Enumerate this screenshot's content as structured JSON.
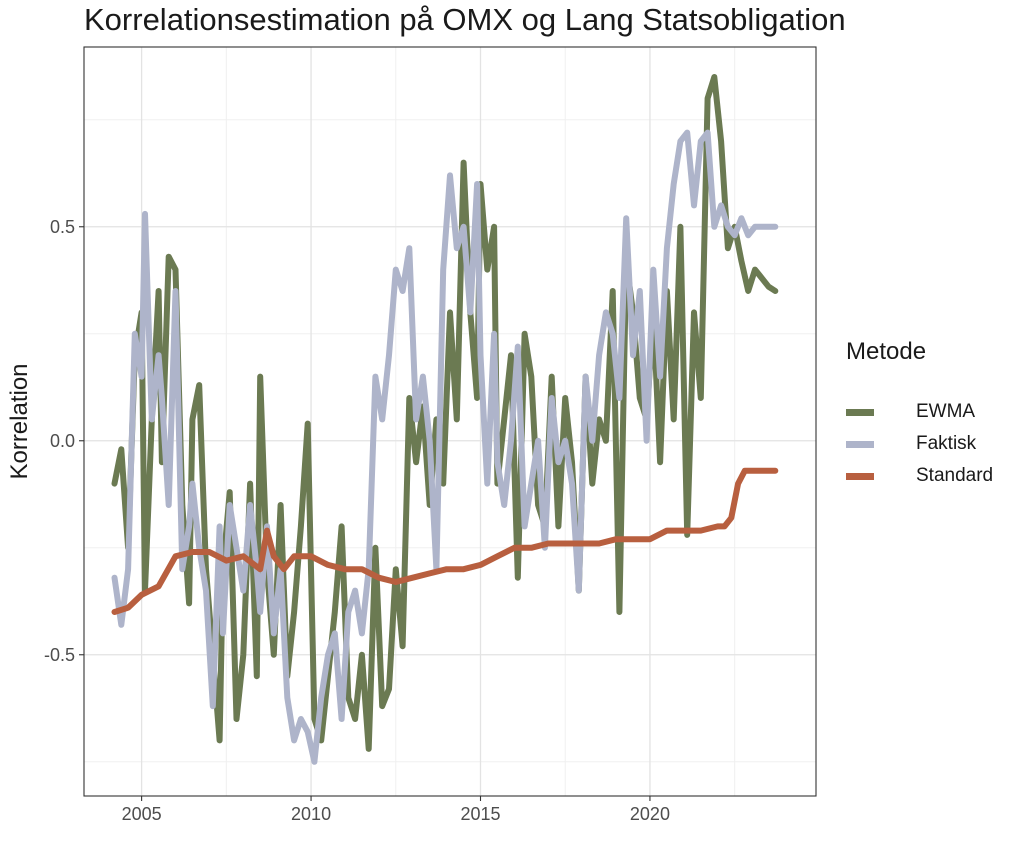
{
  "chart_data": {
    "type": "line",
    "title": "Korrelationsestimation på OMX og Lang Statsobligation",
    "xlabel": "",
    "ylabel": "Korrelation",
    "xlim": [
      2003.3,
      2024.9
    ],
    "ylim": [
      -0.83,
      0.92
    ],
    "x_ticks": [
      2005,
      2010,
      2015,
      2020
    ],
    "x_tick_labels": [
      "2005",
      "2010",
      "2015",
      "2020"
    ],
    "y_ticks": [
      -0.5,
      0.0,
      0.5
    ],
    "y_tick_labels": [
      "-0.5",
      "0.0",
      "0.5"
    ],
    "grid": true,
    "legend": {
      "title": "Metode",
      "position": "right"
    },
    "series": [
      {
        "name": "EWMA",
        "color": "#6b7a52",
        "x": [
          2004.2,
          2004.4,
          2004.6,
          2004.8,
          2005.0,
          2005.1,
          2005.3,
          2005.5,
          2005.6,
          2005.8,
          2006.0,
          2006.2,
          2006.4,
          2006.5,
          2006.7,
          2006.9,
          2007.1,
          2007.3,
          2007.4,
          2007.6,
          2007.8,
          2008.0,
          2008.2,
          2008.4,
          2008.5,
          2008.7,
          2008.9,
          2009.1,
          2009.3,
          2009.5,
          2009.7,
          2009.9,
          2010.1,
          2010.3,
          2010.5,
          2010.7,
          2010.9,
          2011.1,
          2011.3,
          2011.5,
          2011.7,
          2011.9,
          2012.1,
          2012.3,
          2012.5,
          2012.7,
          2012.9,
          2013.1,
          2013.3,
          2013.5,
          2013.7,
          2013.9,
          2014.1,
          2014.3,
          2014.5,
          2014.7,
          2014.9,
          2015.0,
          2015.2,
          2015.4,
          2015.5,
          2015.7,
          2015.9,
          2016.1,
          2016.3,
          2016.5,
          2016.7,
          2016.9,
          2017.1,
          2017.3,
          2017.5,
          2017.7,
          2017.9,
          2018.1,
          2018.3,
          2018.5,
          2018.7,
          2018.9,
          2019.1,
          2019.3,
          2019.5,
          2019.7,
          2019.9,
          2020.1,
          2020.3,
          2020.5,
          2020.7,
          2020.9,
          2021.1,
          2021.3,
          2021.5,
          2021.7,
          2021.9,
          2022.1,
          2022.3,
          2022.5,
          2022.7,
          2022.9,
          2023.1,
          2023.3,
          2023.5,
          2023.7
        ],
        "values": [
          -0.1,
          -0.02,
          -0.25,
          0.2,
          0.3,
          -0.35,
          0.05,
          0.35,
          -0.05,
          0.43,
          0.4,
          -0.15,
          -0.38,
          0.05,
          0.13,
          -0.3,
          -0.5,
          -0.7,
          -0.3,
          -0.12,
          -0.65,
          -0.5,
          -0.1,
          -0.55,
          0.15,
          -0.3,
          -0.5,
          -0.15,
          -0.55,
          -0.4,
          -0.2,
          0.04,
          -0.65,
          -0.7,
          -0.55,
          -0.4,
          -0.2,
          -0.6,
          -0.65,
          -0.5,
          -0.72,
          -0.25,
          -0.62,
          -0.58,
          -0.3,
          -0.48,
          0.1,
          -0.05,
          0.08,
          -0.15,
          0.05,
          -0.1,
          0.3,
          0.05,
          0.65,
          0.3,
          0.1,
          0.6,
          0.4,
          0.5,
          -0.1,
          0.05,
          0.2,
          -0.32,
          0.25,
          0.15,
          -0.15,
          -0.2,
          0.15,
          -0.2,
          0.1,
          -0.05,
          -0.35,
          0.15,
          -0.1,
          0.05,
          0.0,
          0.35,
          -0.4,
          0.42,
          0.3,
          0.1,
          0.05,
          0.3,
          -0.05,
          0.35,
          0.05,
          0.5,
          -0.22,
          0.3,
          0.1,
          0.8,
          0.85,
          0.7,
          0.45,
          0.5,
          0.42,
          0.35,
          0.4,
          0.38,
          0.36,
          0.35
        ]
      },
      {
        "name": "Faktisk",
        "color": "#aeb4ca",
        "x": [
          2004.2,
          2004.4,
          2004.6,
          2004.8,
          2005.0,
          2005.1,
          2005.3,
          2005.5,
          2005.6,
          2005.8,
          2006.0,
          2006.2,
          2006.4,
          2006.5,
          2006.7,
          2006.9,
          2007.1,
          2007.3,
          2007.4,
          2007.6,
          2007.8,
          2008.0,
          2008.2,
          2008.4,
          2008.5,
          2008.7,
          2008.9,
          2009.1,
          2009.3,
          2009.5,
          2009.7,
          2009.9,
          2010.1,
          2010.3,
          2010.5,
          2010.7,
          2010.9,
          2011.1,
          2011.3,
          2011.5,
          2011.7,
          2011.9,
          2012.1,
          2012.3,
          2012.5,
          2012.7,
          2012.9,
          2013.1,
          2013.3,
          2013.5,
          2013.7,
          2013.9,
          2014.1,
          2014.3,
          2014.5,
          2014.7,
          2014.9,
          2015.0,
          2015.2,
          2015.4,
          2015.5,
          2015.7,
          2015.9,
          2016.1,
          2016.3,
          2016.5,
          2016.7,
          2016.9,
          2017.1,
          2017.3,
          2017.5,
          2017.7,
          2017.9,
          2018.1,
          2018.3,
          2018.5,
          2018.7,
          2018.9,
          2019.1,
          2019.3,
          2019.5,
          2019.7,
          2019.9,
          2020.1,
          2020.3,
          2020.5,
          2020.7,
          2020.9,
          2021.1,
          2021.3,
          2021.5,
          2021.7,
          2021.9,
          2022.1,
          2022.3,
          2022.5,
          2022.7,
          2022.9,
          2023.1,
          2023.3,
          2023.5,
          2023.7
        ],
        "values": [
          -0.32,
          -0.43,
          -0.3,
          0.25,
          0.15,
          0.53,
          0.05,
          0.2,
          0.1,
          -0.15,
          0.35,
          -0.3,
          -0.2,
          -0.1,
          -0.25,
          -0.35,
          -0.62,
          -0.2,
          -0.45,
          -0.15,
          -0.25,
          -0.35,
          -0.15,
          -0.3,
          -0.4,
          -0.2,
          -0.45,
          -0.3,
          -0.6,
          -0.7,
          -0.65,
          -0.68,
          -0.75,
          -0.6,
          -0.5,
          -0.45,
          -0.65,
          -0.4,
          -0.35,
          -0.45,
          -0.3,
          0.15,
          0.05,
          0.2,
          0.4,
          0.35,
          0.45,
          0.05,
          0.15,
          0.0,
          -0.3,
          0.4,
          0.62,
          0.45,
          0.5,
          0.3,
          0.6,
          0.2,
          -0.1,
          0.25,
          -0.05,
          -0.15,
          0.0,
          0.22,
          -0.2,
          -0.1,
          0.0,
          -0.25,
          0.1,
          -0.05,
          0.0,
          -0.1,
          -0.35,
          0.15,
          0.0,
          0.2,
          0.3,
          0.25,
          0.1,
          0.52,
          0.2,
          0.35,
          0.0,
          0.4,
          0.15,
          0.45,
          0.6,
          0.7,
          0.72,
          0.55,
          0.7,
          0.72,
          0.5,
          0.55,
          0.5,
          0.48,
          0.52,
          0.48,
          0.5,
          0.5,
          0.5,
          0.5
        ]
      },
      {
        "name": "Standard",
        "color": "#b85f3f",
        "x": [
          2004.2,
          2004.6,
          2005.0,
          2005.5,
          2006.0,
          2006.5,
          2007.0,
          2007.5,
          2008.0,
          2008.5,
          2008.7,
          2008.9,
          2009.2,
          2009.5,
          2010.0,
          2010.5,
          2011.0,
          2011.5,
          2012.0,
          2012.5,
          2013.0,
          2013.5,
          2014.0,
          2014.5,
          2015.0,
          2015.5,
          2016.0,
          2016.5,
          2017.0,
          2017.5,
          2018.0,
          2018.5,
          2019.0,
          2019.5,
          2020.0,
          2020.5,
          2021.0,
          2021.5,
          2022.0,
          2022.2,
          2022.4,
          2022.6,
          2022.8,
          2023.2,
          2023.7
        ],
        "values": [
          -0.4,
          -0.39,
          -0.36,
          -0.34,
          -0.27,
          -0.26,
          -0.26,
          -0.28,
          -0.27,
          -0.3,
          -0.21,
          -0.27,
          -0.3,
          -0.27,
          -0.27,
          -0.29,
          -0.3,
          -0.3,
          -0.32,
          -0.33,
          -0.32,
          -0.31,
          -0.3,
          -0.3,
          -0.29,
          -0.27,
          -0.25,
          -0.25,
          -0.24,
          -0.24,
          -0.24,
          -0.24,
          -0.23,
          -0.23,
          -0.23,
          -0.21,
          -0.21,
          -0.21,
          -0.2,
          -0.2,
          -0.18,
          -0.1,
          -0.07,
          -0.07,
          -0.07
        ]
      }
    ]
  }
}
